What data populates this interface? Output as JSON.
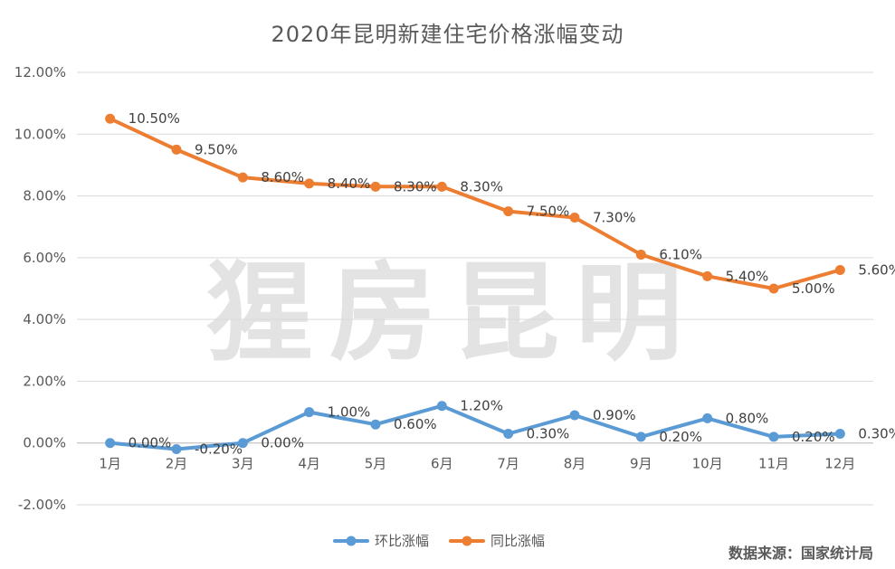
{
  "title": "2020年昆明新建住宅价格涨幅变动",
  "watermark": "猩房昆明",
  "source": "数据来源：国家统计局",
  "chart_data": {
    "type": "line",
    "title": "2020年昆明新建住宅价格涨幅变动",
    "categories": [
      "1月",
      "2月",
      "3月",
      "4月",
      "5月",
      "6月",
      "7月",
      "8月",
      "9月",
      "10月",
      "11月",
      "12月"
    ],
    "series": [
      {
        "name": "环比涨幅",
        "color": "#5b9bd5",
        "values": [
          0.0,
          -0.2,
          0.0,
          1.0,
          0.6,
          1.2,
          0.3,
          0.9,
          0.2,
          0.8,
          0.2,
          0.3
        ],
        "labels": [
          "0.00%",
          "-0.20%",
          "0.00%",
          "1.00%",
          "0.60%",
          "1.20%",
          "0.30%",
          "0.90%",
          "0.20%",
          "0.80%",
          "0.20%",
          "0.30%"
        ]
      },
      {
        "name": "同比涨幅",
        "color": "#ed7d31",
        "values": [
          10.5,
          9.5,
          8.6,
          8.4,
          8.3,
          8.3,
          7.5,
          7.3,
          6.1,
          5.4,
          5.0,
          5.6
        ],
        "labels": [
          "10.50%",
          "9.50%",
          "8.60%",
          "8.40%",
          "8.30%",
          "8.30%",
          "7.50%",
          "7.30%",
          "6.10%",
          "5.40%",
          "5.00%",
          "5.60%"
        ]
      }
    ],
    "ylim": [
      -2,
      12
    ],
    "yticks": [
      -2,
      0,
      2,
      4,
      6,
      8,
      10,
      12
    ],
    "ytick_labels": [
      "-2.00%",
      "0.00%",
      "2.00%",
      "4.00%",
      "6.00%",
      "8.00%",
      "10.00%",
      "12.00%"
    ],
    "grid": true,
    "legend_position": "bottom",
    "gridline_color": "#d9d9d9"
  }
}
